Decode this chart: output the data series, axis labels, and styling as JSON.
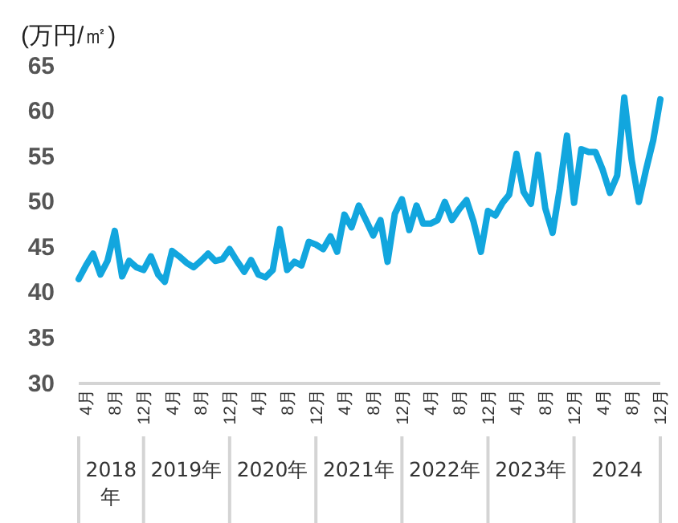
{
  "chart_data": {
    "type": "line",
    "ylabel": "(万円/㎡)",
    "x": [
      "2018-03",
      "2018-04",
      "2018-05",
      "2018-06",
      "2018-07",
      "2018-08",
      "2018-09",
      "2018-10",
      "2018-11",
      "2018-12",
      "2019-01",
      "2019-02",
      "2019-03",
      "2019-04",
      "2019-05",
      "2019-06",
      "2019-07",
      "2019-08",
      "2019-09",
      "2019-10",
      "2019-11",
      "2019-12",
      "2020-01",
      "2020-02",
      "2020-03",
      "2020-04",
      "2020-05",
      "2020-06",
      "2020-07",
      "2020-08",
      "2020-09",
      "2020-10",
      "2020-11",
      "2020-12",
      "2021-01",
      "2021-02",
      "2021-03",
      "2021-04",
      "2021-05",
      "2021-06",
      "2021-07",
      "2021-08",
      "2021-09",
      "2021-10",
      "2021-11",
      "2021-12",
      "2022-01",
      "2022-02",
      "2022-03",
      "2022-04",
      "2022-05",
      "2022-06",
      "2022-07",
      "2022-08",
      "2022-09",
      "2022-10",
      "2022-11",
      "2022-12",
      "2023-01",
      "2023-02",
      "2023-03",
      "2023-04",
      "2023-05",
      "2023-06",
      "2023-07",
      "2023-08",
      "2023-09",
      "2023-10",
      "2023-11",
      "2023-12",
      "2024-01",
      "2024-02",
      "2024-03",
      "2024-04",
      "2024-05",
      "2024-06",
      "2024-07",
      "2024-08",
      "2024-09",
      "2024-10",
      "2024-11",
      "2024-12"
    ],
    "series": [
      {
        "color": "#12a6de",
        "values": [
          41.5,
          43,
          44.3,
          42,
          43.5,
          46.8,
          41.8,
          43.5,
          42.8,
          42.5,
          44,
          42,
          41.2,
          44.6,
          44,
          43.3,
          42.8,
          43.5,
          44.3,
          43.5,
          43.7,
          44.8,
          43.5,
          42.3,
          43.6,
          42,
          41.7,
          42.5,
          47,
          42.5,
          43.4,
          43,
          45.6,
          45.3,
          44.8,
          46.2,
          44.5,
          48.6,
          47.2,
          49.6,
          48,
          46.3,
          48,
          43.4,
          48.7,
          50.3,
          46.9,
          49.6,
          47.6,
          47.6,
          48,
          50,
          48,
          49.2,
          50.2,
          47.8,
          44.5,
          49,
          48.5,
          49.9,
          50.8,
          55.3,
          51.1,
          49.8,
          55.2,
          49.3,
          46.6,
          51.4,
          57.3,
          49.9,
          55.8,
          55.5,
          55.5,
          53.5,
          51,
          52.9,
          61.5,
          54.7,
          50,
          53.5,
          56.8,
          61.3
        ]
      }
    ],
    "xlim": [
      "2018-03",
      "2024-12"
    ],
    "xticks": [
      {
        "value": "2018-04",
        "label": "4月"
      },
      {
        "value": "2018-08",
        "label": "8月"
      },
      {
        "value": "2018-12",
        "label": "12月"
      },
      {
        "value": "2019-04",
        "label": "4月"
      },
      {
        "value": "2019-08",
        "label": "8月"
      },
      {
        "value": "2019-12",
        "label": "12月"
      },
      {
        "value": "2020-04",
        "label": "4月"
      },
      {
        "value": "2020-08",
        "label": "8月"
      },
      {
        "value": "2020-12",
        "label": "12月"
      },
      {
        "value": "2021-04",
        "label": "4月"
      },
      {
        "value": "2021-08",
        "label": "8月"
      },
      {
        "value": "2021-12",
        "label": "12月"
      },
      {
        "value": "2022-04",
        "label": "4月"
      },
      {
        "value": "2022-08",
        "label": "8月"
      },
      {
        "value": "2022-12",
        "label": "12月"
      },
      {
        "value": "2023-04",
        "label": "4月"
      },
      {
        "value": "2023-08",
        "label": "8月"
      },
      {
        "value": "2023-12",
        "label": "12月"
      },
      {
        "value": "2024-04",
        "label": "4月"
      },
      {
        "value": "2024-08",
        "label": "8月"
      },
      {
        "value": "2024-12",
        "label": "12月"
      }
    ],
    "ylim": [
      30,
      65
    ],
    "yticks": [
      30,
      35,
      40,
      45,
      50,
      55,
      60,
      65
    ],
    "annotations": [
      "2018年",
      "2019年",
      "2020年",
      "2021年",
      "2022年",
      "2023年",
      "2024"
    ],
    "grid": false,
    "marker": "none",
    "line_style": "solid"
  }
}
